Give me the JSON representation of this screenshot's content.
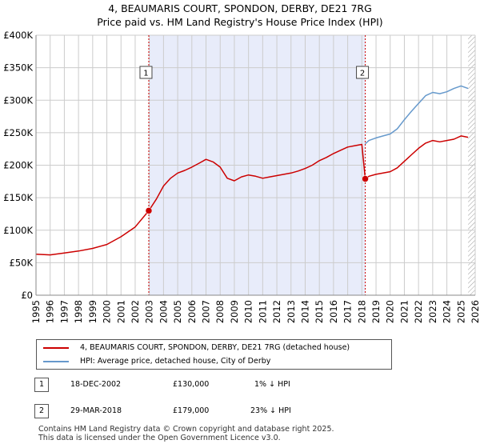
{
  "title_line1": "4, BEAUMARIS COURT, SPONDON, DERBY, DE21 7RG",
  "title_line2": "Price paid vs. HM Land Registry's House Price Index (HPI)",
  "colors": {
    "property": "#cc0000",
    "hpi": "#6699cc",
    "shade": "#e8ecfa",
    "grid": "#cccccc"
  },
  "chart_data": {
    "type": "line",
    "xlim": [
      1995,
      2026
    ],
    "ylim": [
      0,
      400000
    ],
    "x_ticks": [
      "1995",
      "1996",
      "1997",
      "1998",
      "1999",
      "2000",
      "2001",
      "2002",
      "2003",
      "2004",
      "2005",
      "2006",
      "2007",
      "2008",
      "2009",
      "2010",
      "2011",
      "2012",
      "2013",
      "2014",
      "2015",
      "2016",
      "2017",
      "2018",
      "2019",
      "2020",
      "2021",
      "2022",
      "2023",
      "2024",
      "2025",
      "2026"
    ],
    "y_ticks": [
      {
        "value": 0,
        "label": "£0"
      },
      {
        "value": 50000,
        "label": "£50K"
      },
      {
        "value": 100000,
        "label": "£100K"
      },
      {
        "value": 150000,
        "label": "£150K"
      },
      {
        "value": 200000,
        "label": "£200K"
      },
      {
        "value": 250000,
        "label": "£250K"
      },
      {
        "value": 300000,
        "label": "£300K"
      },
      {
        "value": 350000,
        "label": "£350K"
      },
      {
        "value": 400000,
        "label": "£400K"
      }
    ],
    "shaded_range": [
      2002.96,
      2018.24
    ],
    "hatched_from": 2025.5,
    "series": [
      {
        "name": "4, BEAUMARIS COURT, SPONDON, DERBY, DE21 7RG (detached house)",
        "x": [
          1995.0,
          1996.0,
          1997.0,
          1998.0,
          1999.0,
          2000.0,
          2001.0,
          2002.0,
          2002.96,
          2003.5,
          2004.0,
          2004.5,
          2005.0,
          2005.5,
          2006.0,
          2006.5,
          2007.0,
          2007.5,
          2008.0,
          2008.5,
          2009.0,
          2009.5,
          2010.0,
          2010.5,
          2011.0,
          2011.5,
          2012.0,
          2012.5,
          2013.0,
          2013.5,
          2014.0,
          2014.5,
          2015.0,
          2015.5,
          2016.0,
          2016.5,
          2017.0,
          2017.5,
          2018.0,
          2018.24,
          2018.5,
          2019.0,
          2019.5,
          2020.0,
          2020.5,
          2021.0,
          2021.5,
          2022.0,
          2022.5,
          2023.0,
          2023.5,
          2024.0,
          2024.5,
          2025.0,
          2025.5
        ],
        "values": [
          63000,
          62000,
          65000,
          68000,
          72000,
          78000,
          90000,
          105000,
          130000,
          148000,
          168000,
          180000,
          188000,
          192000,
          197000,
          203000,
          209000,
          205000,
          197000,
          180000,
          176000,
          182000,
          185000,
          183000,
          180000,
          182000,
          184000,
          186000,
          188000,
          191000,
          195000,
          200000,
          207000,
          212000,
          218000,
          223000,
          228000,
          230000,
          232000,
          179000,
          183000,
          186000,
          188000,
          190000,
          196000,
          206000,
          216000,
          226000,
          234000,
          238000,
          236000,
          238000,
          240000,
          245000,
          243000
        ]
      },
      {
        "name": "HPI: Average price, detached house, City of Derby",
        "x": [
          2018.24,
          2018.5,
          2019.0,
          2019.5,
          2020.0,
          2020.5,
          2021.0,
          2021.5,
          2022.0,
          2022.5,
          2023.0,
          2023.5,
          2024.0,
          2024.5,
          2025.0,
          2025.5
        ],
        "values": [
          233000,
          238000,
          242000,
          245000,
          248000,
          256000,
          270000,
          283000,
          295000,
          307000,
          312000,
          310000,
          313000,
          318000,
          322000,
          318000
        ]
      }
    ],
    "annotations": [
      {
        "label": "1",
        "x": 2002.96,
        "value": 130000
      },
      {
        "label": "2",
        "x": 2018.24,
        "value": 179000
      }
    ]
  },
  "legend": {
    "property": "4, BEAUMARIS COURT, SPONDON, DERBY, DE21 7RG (detached house)",
    "hpi": "HPI: Average price, detached house, City of Derby"
  },
  "sales": [
    {
      "num": "1",
      "date": "18-DEC-2002",
      "price": "£130,000",
      "hpi": "1% ↓ HPI"
    },
    {
      "num": "2",
      "date": "29-MAR-2018",
      "price": "£179,000",
      "hpi": "23% ↓ HPI"
    }
  ],
  "footer_line1": "Contains HM Land Registry data © Crown copyright and database right 2025.",
  "footer_line2": "This data is licensed under the Open Government Licence v3.0."
}
